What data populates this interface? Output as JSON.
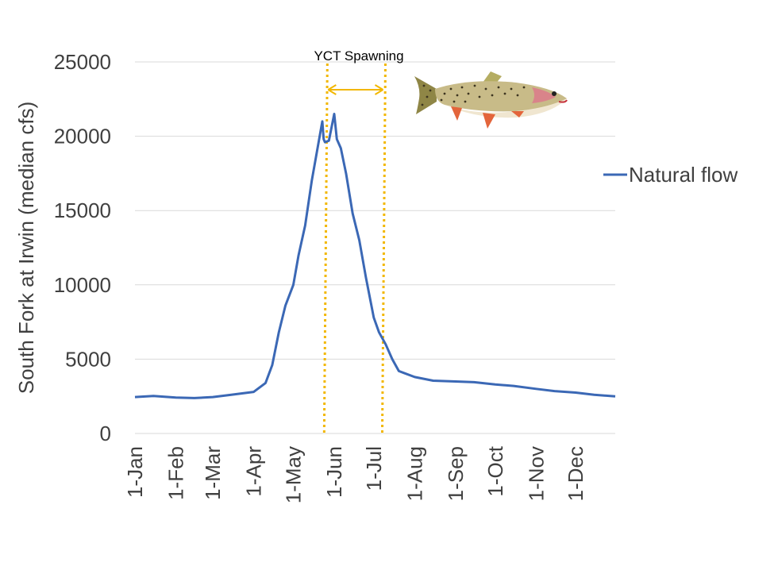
{
  "chart_data": {
    "type": "line",
    "title": "",
    "xlabel": "",
    "ylabel": "South Fork at Irwin (median cfs)",
    "ylim": [
      0,
      25000
    ],
    "y_ticks": [
      "0",
      "5000",
      "10000",
      "15000",
      "20000",
      "25000"
    ],
    "x_ticks": [
      "1-Jan",
      "1-Feb",
      "1-Mar",
      "1-Apr",
      "1-May",
      "1-Jun",
      "1-Jul",
      "1-Aug",
      "1-Sep",
      "1-Oct",
      "1-Nov",
      "1-Dec"
    ],
    "grid": "horizontal",
    "legend_position": "right",
    "series": [
      {
        "name": "Natural flow",
        "color": "#3b68b5",
        "x": [
          "1-Jan",
          "15-Jan",
          "1-Feb",
          "15-Feb",
          "1-Mar",
          "15-Mar",
          "1-Apr",
          "10-Apr",
          "15-Apr",
          "20-Apr",
          "25-Apr",
          "1-May",
          "5-May",
          "10-May",
          "15-May",
          "20-May",
          "23-May",
          "24-May",
          "25-May",
          "28-May",
          "1-Jun",
          "3-Jun",
          "6-Jun",
          "10-Jun",
          "15-Jun",
          "20-Jun",
          "25-Jun",
          "1-Jul",
          "5-Jul",
          "10-Jul",
          "15-Jul",
          "20-Jul",
          "1-Aug",
          "15-Aug",
          "1-Sep",
          "15-Sep",
          "1-Oct",
          "15-Oct",
          "1-Nov",
          "15-Nov",
          "1-Dec",
          "15-Dec",
          "31-Dec"
        ],
        "values": [
          2450,
          2520,
          2420,
          2380,
          2450,
          2600,
          2800,
          3400,
          4600,
          6800,
          8600,
          10000,
          12000,
          14000,
          17000,
          19500,
          21000,
          19800,
          19600,
          19700,
          21500,
          19800,
          19200,
          17500,
          14800,
          13000,
          10500,
          7800,
          6800,
          6000,
          5000,
          4200,
          3800,
          3550,
          3500,
          3450,
          3300,
          3200,
          3000,
          2850,
          2750,
          2600,
          2500
        ]
      }
    ],
    "annotations": [
      {
        "text": "YCT Spawning",
        "start": "25-May",
        "end": "8-Jul",
        "color": "#f2b700"
      }
    ]
  },
  "image": {
    "icon": "cutthroat-trout-icon"
  }
}
